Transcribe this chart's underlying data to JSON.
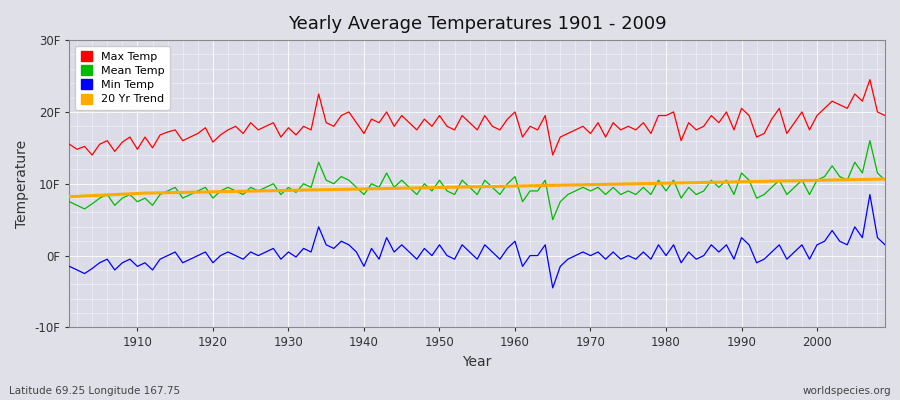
{
  "title": "Yearly Average Temperatures 1901 - 2009",
  "xlabel": "Year",
  "ylabel": "Temperature",
  "xlim": [
    1901,
    2009
  ],
  "ylim": [
    -10,
    30
  ],
  "yticks": [
    -10,
    0,
    10,
    20,
    30
  ],
  "ytick_labels": [
    "-10F",
    "0F",
    "10F",
    "20F",
    "30F"
  ],
  "xticks": [
    1910,
    1920,
    1930,
    1940,
    1950,
    1960,
    1970,
    1980,
    1990,
    2000
  ],
  "bg_color": "#e0e0e8",
  "plot_bg_color": "#dcdce8",
  "grid_color": "#ffffff",
  "line_colors": {
    "max": "#ff0000",
    "mean": "#00bb00",
    "min": "#0000ff",
    "trend": "#ffaa00"
  },
  "legend_labels": [
    "Max Temp",
    "Mean Temp",
    "Min Temp",
    "20 Yr Trend"
  ],
  "footnote_left": "Latitude 69.25 Longitude 167.75",
  "footnote_right": "worldspecies.org",
  "years": [
    1901,
    1902,
    1903,
    1904,
    1905,
    1906,
    1907,
    1908,
    1909,
    1910,
    1911,
    1912,
    1913,
    1914,
    1915,
    1916,
    1917,
    1918,
    1919,
    1920,
    1921,
    1922,
    1923,
    1924,
    1925,
    1926,
    1927,
    1928,
    1929,
    1930,
    1931,
    1932,
    1933,
    1934,
    1935,
    1936,
    1937,
    1938,
    1939,
    1940,
    1941,
    1942,
    1943,
    1944,
    1945,
    1946,
    1947,
    1948,
    1949,
    1950,
    1951,
    1952,
    1953,
    1954,
    1955,
    1956,
    1957,
    1958,
    1959,
    1960,
    1961,
    1962,
    1963,
    1964,
    1965,
    1966,
    1967,
    1968,
    1969,
    1970,
    1971,
    1972,
    1973,
    1974,
    1975,
    1976,
    1977,
    1978,
    1979,
    1980,
    1981,
    1982,
    1983,
    1984,
    1985,
    1986,
    1987,
    1988,
    1989,
    1990,
    1991,
    1992,
    1993,
    1994,
    1995,
    1996,
    1997,
    1998,
    1999,
    2000,
    2001,
    2002,
    2003,
    2004,
    2005,
    2006,
    2007,
    2008,
    2009
  ],
  "max_temp": [
    15.5,
    14.8,
    15.2,
    14.0,
    15.5,
    16.0,
    14.5,
    15.8,
    16.5,
    14.8,
    16.5,
    15.0,
    16.8,
    17.2,
    17.5,
    16.0,
    16.5,
    17.0,
    17.8,
    15.8,
    16.8,
    17.5,
    18.0,
    17.0,
    18.5,
    17.5,
    18.0,
    18.5,
    16.5,
    17.8,
    16.8,
    18.0,
    17.5,
    22.5,
    18.5,
    18.0,
    19.5,
    20.0,
    18.5,
    17.0,
    19.0,
    18.5,
    20.0,
    18.0,
    19.5,
    18.5,
    17.5,
    19.0,
    18.0,
    19.5,
    18.0,
    17.5,
    19.5,
    18.5,
    17.5,
    19.5,
    18.0,
    17.5,
    19.0,
    20.0,
    16.5,
    18.0,
    17.5,
    19.5,
    14.0,
    16.5,
    17.0,
    17.5,
    18.0,
    17.0,
    18.5,
    16.5,
    18.5,
    17.5,
    18.0,
    17.5,
    18.5,
    17.0,
    19.5,
    19.5,
    20.0,
    16.0,
    18.5,
    17.5,
    18.0,
    19.5,
    18.5,
    20.0,
    17.5,
    20.5,
    19.5,
    16.5,
    17.0,
    19.0,
    20.5,
    17.0,
    18.5,
    20.0,
    17.5,
    19.5,
    20.5,
    21.5,
    21.0,
    20.5,
    22.5,
    21.5,
    24.5,
    20.0,
    19.5
  ],
  "mean_temp": [
    7.5,
    7.0,
    6.5,
    7.2,
    8.0,
    8.5,
    7.0,
    8.0,
    8.5,
    7.5,
    8.0,
    7.0,
    8.5,
    9.0,
    9.5,
    8.0,
    8.5,
    9.0,
    9.5,
    8.0,
    9.0,
    9.5,
    9.0,
    8.5,
    9.5,
    9.0,
    9.5,
    10.0,
    8.5,
    9.5,
    8.8,
    10.0,
    9.5,
    13.0,
    10.5,
    10.0,
    11.0,
    10.5,
    9.5,
    8.5,
    10.0,
    9.5,
    11.5,
    9.5,
    10.5,
    9.5,
    8.5,
    10.0,
    9.0,
    10.5,
    9.0,
    8.5,
    10.5,
    9.5,
    8.5,
    10.5,
    9.5,
    8.5,
    10.0,
    11.0,
    7.5,
    9.0,
    9.0,
    10.5,
    5.0,
    7.5,
    8.5,
    9.0,
    9.5,
    9.0,
    9.5,
    8.5,
    9.5,
    8.5,
    9.0,
    8.5,
    9.5,
    8.5,
    10.5,
    9.0,
    10.5,
    8.0,
    9.5,
    8.5,
    9.0,
    10.5,
    9.5,
    10.5,
    8.5,
    11.5,
    10.5,
    8.0,
    8.5,
    9.5,
    10.5,
    8.5,
    9.5,
    10.5,
    8.5,
    10.5,
    11.0,
    12.5,
    11.0,
    10.5,
    13.0,
    11.5,
    16.0,
    11.5,
    10.5
  ],
  "min_temp": [
    -1.5,
    -2.0,
    -2.5,
    -1.8,
    -1.0,
    -0.5,
    -2.0,
    -1.0,
    -0.5,
    -1.5,
    -1.0,
    -2.0,
    -0.5,
    0.0,
    0.5,
    -1.0,
    -0.5,
    0.0,
    0.5,
    -1.0,
    0.0,
    0.5,
    0.0,
    -0.5,
    0.5,
    0.0,
    0.5,
    1.0,
    -0.5,
    0.5,
    -0.2,
    1.0,
    0.5,
    4.0,
    1.5,
    1.0,
    2.0,
    1.5,
    0.5,
    -1.5,
    1.0,
    -0.5,
    2.5,
    0.5,
    1.5,
    0.5,
    -0.5,
    1.0,
    0.0,
    1.5,
    0.0,
    -0.5,
    1.5,
    0.5,
    -0.5,
    1.5,
    0.5,
    -0.5,
    1.0,
    2.0,
    -1.5,
    0.0,
    0.0,
    1.5,
    -4.5,
    -1.5,
    -0.5,
    0.0,
    0.5,
    0.0,
    0.5,
    -0.5,
    0.5,
    -0.5,
    0.0,
    -0.5,
    0.5,
    -0.5,
    1.5,
    0.0,
    1.5,
    -1.0,
    0.5,
    -0.5,
    0.0,
    1.5,
    0.5,
    1.5,
    -0.5,
    2.5,
    1.5,
    -1.0,
    -0.5,
    0.5,
    1.5,
    -0.5,
    0.5,
    1.5,
    -0.5,
    1.5,
    2.0,
    3.5,
    2.0,
    1.5,
    4.0,
    2.5,
    8.5,
    2.5,
    1.5
  ],
  "trend": [
    8.2,
    8.25,
    8.3,
    8.35,
    8.4,
    8.45,
    8.5,
    8.55,
    8.6,
    8.65,
    8.7,
    8.72,
    8.74,
    8.76,
    8.78,
    8.8,
    8.82,
    8.84,
    8.86,
    8.88,
    8.9,
    8.92,
    8.94,
    8.96,
    8.98,
    9.0,
    9.02,
    9.04,
    9.06,
    9.08,
    9.1,
    9.12,
    9.14,
    9.16,
    9.18,
    9.2,
    9.22,
    9.24,
    9.26,
    9.28,
    9.3,
    9.32,
    9.34,
    9.36,
    9.38,
    9.4,
    9.42,
    9.44,
    9.46,
    9.48,
    9.5,
    9.52,
    9.54,
    9.56,
    9.58,
    9.6,
    9.62,
    9.64,
    9.66,
    9.68,
    9.7,
    9.72,
    9.74,
    9.76,
    9.78,
    9.8,
    9.82,
    9.84,
    9.86,
    9.88,
    9.9,
    9.92,
    9.94,
    9.96,
    9.98,
    10.0,
    10.02,
    10.04,
    10.06,
    10.08,
    10.1,
    10.12,
    10.14,
    10.16,
    10.18,
    10.2,
    10.22,
    10.24,
    10.26,
    10.28,
    10.3,
    10.32,
    10.34,
    10.36,
    10.38,
    10.4,
    10.42,
    10.44,
    10.46,
    10.48,
    10.5,
    10.52,
    10.54,
    10.56,
    10.58,
    10.6,
    10.62,
    10.64,
    10.66
  ]
}
